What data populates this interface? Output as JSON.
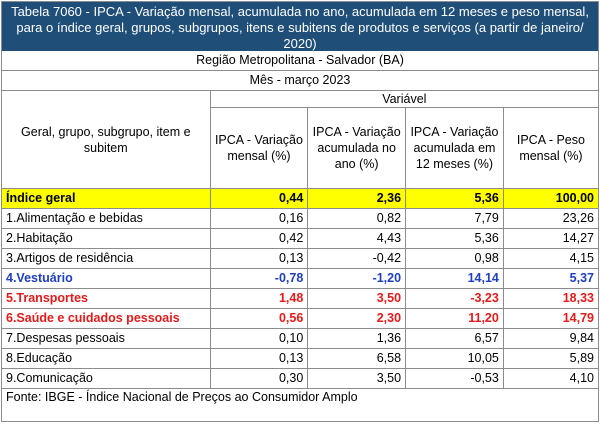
{
  "title": "Tabela 7060 - IPCA - Variação mensal, acumulada no ano, acumulada em 12 meses e peso mensal, para o índice geral, grupos, subgrupos, itens e subitens de produtos e serviços (a partir de janeiro/ 2020)",
  "region": "Região Metropolitana - Salvador (BA)",
  "month": "Mês - março 2023",
  "header": {
    "variavel": "Variável",
    "first_col": "Geral, grupo, subgrupo, item e subitem",
    "cols": [
      "IPCA - Variação mensal (%)",
      "IPCA - Variação acumulada no ano (%)",
      "IPCA - Variação acumulada em 12 meses (%)",
      "IPCA - Peso mensal (%)"
    ]
  },
  "rows": [
    {
      "label": "Índice geral",
      "v1": "0,44",
      "v2": "2,36",
      "v3": "5,36",
      "v4": "100,00"
    },
    {
      "label": "1.Alimentação e bebidas",
      "v1": "0,16",
      "v2": "0,82",
      "v3": "7,79",
      "v4": "23,26"
    },
    {
      "label": "2.Habitação",
      "v1": "0,42",
      "v2": "4,43",
      "v3": "5,36",
      "v4": "14,27"
    },
    {
      "label": "3.Artigos de residência",
      "v1": "0,13",
      "v2": "-0,42",
      "v3": "0,98",
      "v4": "4,15"
    },
    {
      "label": "4.Vestuário",
      "v1": "-0,78",
      "v2": "-1,20",
      "v3": "14,14",
      "v4": "5,37"
    },
    {
      "label": "5.Transportes",
      "v1": "1,48",
      "v2": "3,50",
      "v3": "-3,23",
      "v4": "18,33"
    },
    {
      "label": "6.Saúde e cuidados pessoais",
      "v1": "0,56",
      "v2": "2,30",
      "v3": "11,20",
      "v4": "14,79"
    },
    {
      "label": "7.Despesas pessoais",
      "v1": "0,10",
      "v2": "1,36",
      "v3": "6,57",
      "v4": "9,84"
    },
    {
      "label": "8.Educação",
      "v1": "0,13",
      "v2": "6,58",
      "v3": "10,05",
      "v4": "5,89"
    },
    {
      "label": "9.Comunicação",
      "v1": "0,30",
      "v2": "3,50",
      "v3": "-0,53",
      "v4": "4,10"
    }
  ],
  "source": "Fonte: IBGE - Índice Nacional de Preços ao Consumidor Amplo",
  "colors": {
    "title_bg": "#1f4e79",
    "highlight_yellow": "#ffff00",
    "blue_text": "#1f3fc0",
    "red_text": "#e41b1b"
  }
}
